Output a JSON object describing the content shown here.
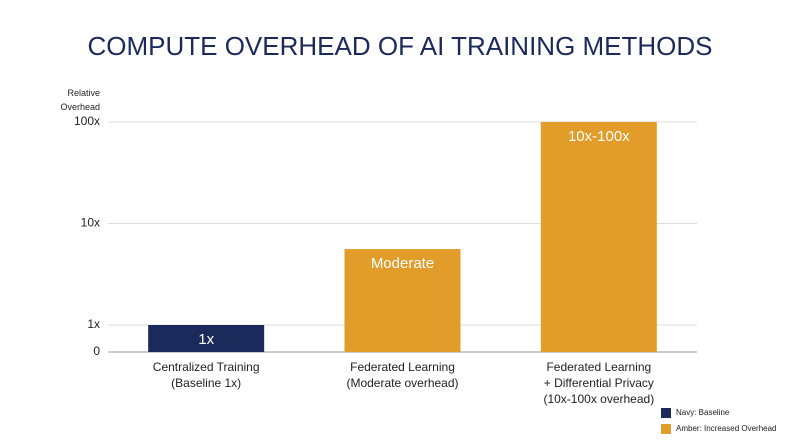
{
  "chart_data": {
    "type": "bar",
    "title": "COMPUTE OVERHEAD OF AI TRAINING METHODS",
    "y_label": "Relative\nOverhead",
    "scale": "symlog",
    "categories": [
      "Centralized Training\n(Baseline 1x)",
      "Federated Learning\n(Moderate overhead)",
      "Federated Learning\n+ Differential Privacy\n(10x-100x overhead)"
    ],
    "values": [
      1,
      5.6,
      100
    ],
    "value_labels": [
      "1x",
      "Moderate",
      "10x-100x"
    ],
    "colors": [
      "#1b2a5a",
      "#e29c2a",
      "#e29c2a"
    ],
    "ylim": [
      0,
      100
    ],
    "yticks": [
      0,
      {
        "value": 1,
        "label": "1x"
      },
      {
        "value": 10,
        "label": "10x"
      },
      {
        "value": 100,
        "label": "100x"
      }
    ],
    "grid": true,
    "legend_position": "lower right",
    "legend": [
      {
        "label": "Navy: Baseline",
        "color": "#1b2a5a"
      },
      {
        "label": "Amber: Increased Overhead",
        "color": "#e29c2a"
      }
    ]
  }
}
